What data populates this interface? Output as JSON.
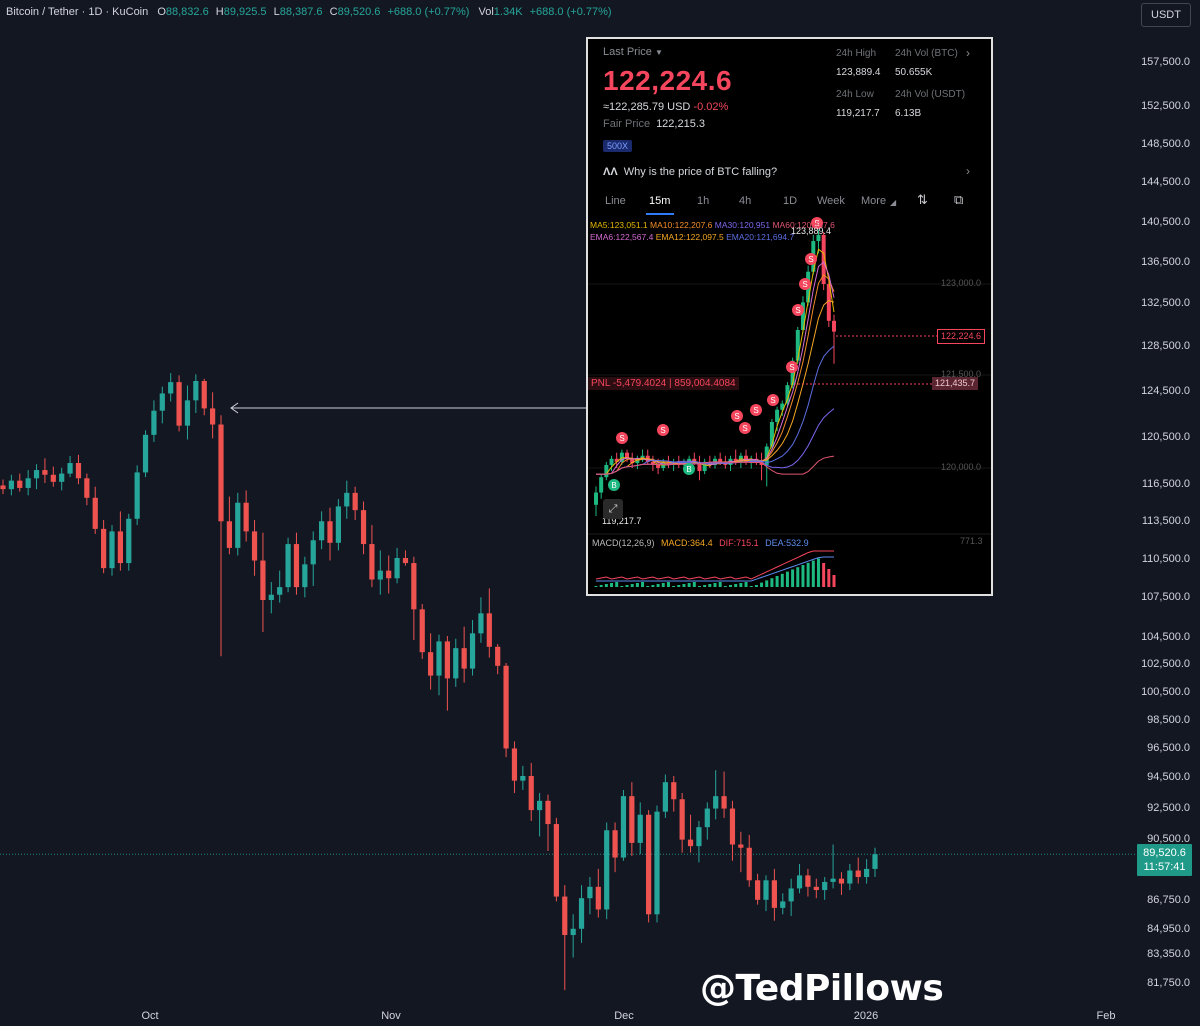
{
  "header": {
    "symbol": "Bitcoin / Tether · 1D · KuCoin",
    "o_label": "O",
    "o": "88,832.6",
    "h_label": "H",
    "h": "89,925.5",
    "l_label": "L",
    "l": "88,387.6",
    "c_label": "C",
    "c": "89,520.6",
    "change": "+688.0 (+0.77%)",
    "vol_label": "Vol",
    "vol": "1.34K",
    "vol_change": "+688.0 (+0.77%)"
  },
  "currency_button": "USDT",
  "current_price_tag": {
    "price": "89,520.6",
    "countdown": "11:57:41"
  },
  "watermark": "@TedPillows",
  "colors": {
    "background": "#131722",
    "up": "#26a69a",
    "down": "#ef5350",
    "axis_text": "#d1d4dc",
    "price_tag": "#1f9a88"
  },
  "chart_data": [
    {
      "type": "candlestick",
      "title": "Bitcoin / Tether · 1D · KuCoin",
      "x_labels": [
        "Oct",
        "Nov",
        "Dec",
        "2026",
        "Feb"
      ],
      "y_ticks": [
        "157,500.0",
        "152,500.0",
        "148,500.0",
        "144,500.0",
        "140,500.0",
        "136,500.0",
        "132,500.0",
        "128,500.0",
        "124,500.0",
        "120,500.0",
        "116,500.0",
        "113,500.0",
        "110,500.0",
        "107,500.0",
        "104,500.0",
        "102,500.0",
        "100,500.0",
        "98,500.0",
        "96,500.0",
        "94,500.0",
        "92,500.0",
        "90,500.0",
        "86,750.0",
        "84,950.0",
        "83,350.0",
        "81,750.0"
      ],
      "y_tick_values": [
        157500,
        152500,
        148500,
        144500,
        140500,
        136500,
        132500,
        128500,
        124500,
        120500,
        116500,
        113500,
        110500,
        107500,
        104500,
        102500,
        100500,
        98500,
        96500,
        94500,
        92500,
        90500,
        86750,
        84950,
        83350,
        81750
      ],
      "candles": [
        [
          116300,
          116800,
          115600,
          116000
        ],
        [
          116000,
          117200,
          115500,
          116700
        ],
        [
          116700,
          117300,
          115800,
          116100
        ],
        [
          116100,
          117600,
          115500,
          116900
        ],
        [
          116900,
          118100,
          116000,
          117600
        ],
        [
          117600,
          118600,
          116500,
          117200
        ],
        [
          117200,
          117900,
          116200,
          116600
        ],
        [
          116600,
          117800,
          115900,
          117300
        ],
        [
          117300,
          118800,
          117000,
          118200
        ],
        [
          118200,
          118900,
          116400,
          116900
        ],
        [
          116900,
          117300,
          114700,
          115300
        ],
        [
          115300,
          116200,
          112400,
          112800
        ],
        [
          112800,
          113500,
          109300,
          109700
        ],
        [
          109700,
          113100,
          109100,
          112600
        ],
        [
          112600,
          114200,
          109500,
          110100
        ],
        [
          110100,
          114000,
          109500,
          113600
        ],
        [
          113600,
          118000,
          113100,
          117400
        ],
        [
          117400,
          121000,
          117000,
          120600
        ],
        [
          120600,
          123600,
          120000,
          122700
        ],
        [
          122700,
          124800,
          121600,
          124200
        ],
        [
          124200,
          126000,
          123500,
          125200
        ],
        [
          125200,
          125800,
          120900,
          121400
        ],
        [
          121400,
          124900,
          120200,
          123600
        ],
        [
          123600,
          125900,
          122500,
          125300
        ],
        [
          125300,
          125500,
          122300,
          122900
        ],
        [
          122900,
          124300,
          120300,
          121500
        ],
        [
          121500,
          122300,
          103000,
          113400
        ],
        [
          113400,
          115400,
          110800,
          111300
        ],
        [
          111300,
          115700,
          110700,
          114900
        ],
        [
          114900,
          115900,
          111800,
          112600
        ],
        [
          112600,
          113500,
          109100,
          110300
        ],
        [
          110300,
          112500,
          104800,
          107200
        ],
        [
          107200,
          108600,
          106200,
          107600
        ],
        [
          107600,
          109500,
          107000,
          108200
        ],
        [
          108200,
          112100,
          107800,
          111600
        ],
        [
          111600,
          112500,
          107600,
          108200
        ],
        [
          108200,
          110600,
          107400,
          110000
        ],
        [
          110000,
          112600,
          108300,
          111900
        ],
        [
          111900,
          114200,
          111200,
          113400
        ],
        [
          113400,
          114500,
          110300,
          111700
        ],
        [
          111700,
          115200,
          111100,
          114600
        ],
        [
          114600,
          116700,
          113600,
          115700
        ],
        [
          115700,
          116200,
          113500,
          114300
        ],
        [
          114300,
          115000,
          110800,
          111600
        ],
        [
          111600,
          113100,
          108200,
          108800
        ],
        [
          108800,
          111100,
          107600,
          109500
        ],
        [
          109500,
          110700,
          107700,
          108900
        ],
        [
          108900,
          111300,
          108500,
          110500
        ],
        [
          110500,
          111100,
          109900,
          110100
        ],
        [
          110100,
          110600,
          104200,
          106500
        ],
        [
          106500,
          106900,
          102800,
          103300
        ],
        [
          103300,
          104700,
          100600,
          101600
        ],
        [
          101600,
          104600,
          100200,
          104100
        ],
        [
          104100,
          104500,
          99100,
          101400
        ],
        [
          101400,
          104300,
          100800,
          103600
        ],
        [
          103600,
          105200,
          101100,
          102100
        ],
        [
          102100,
          105700,
          101600,
          104700
        ],
        [
          104700,
          107400,
          104000,
          106200
        ],
        [
          106200,
          108100,
          102900,
          103700
        ],
        [
          103700,
          103900,
          101700,
          102300
        ],
        [
          102300,
          102500,
          95800,
          96400
        ],
        [
          96400,
          96900,
          93400,
          94200
        ],
        [
          94200,
          95200,
          93600,
          94500
        ],
        [
          94500,
          95400,
          91600,
          92300
        ],
        [
          92300,
          93400,
          90600,
          92900
        ],
        [
          92900,
          93300,
          89700,
          91400
        ],
        [
          91400,
          91800,
          86600,
          86900
        ],
        [
          86900,
          87600,
          81300,
          84500
        ],
        [
          84500,
          85800,
          83100,
          84900
        ],
        [
          84900,
          87600,
          84000,
          86800
        ],
        [
          86800,
          88100,
          85800,
          87500
        ],
        [
          87500,
          88600,
          85600,
          86100
        ],
        [
          86100,
          91500,
          85500,
          91000
        ],
        [
          91000,
          91500,
          88400,
          89300
        ],
        [
          89300,
          93600,
          89100,
          93200
        ],
        [
          93200,
          94100,
          89400,
          90200
        ],
        [
          90200,
          92800,
          89500,
          92000
        ],
        [
          92000,
          92300,
          85300,
          85800
        ],
        [
          85800,
          92600,
          85300,
          92200
        ],
        [
          92200,
          94600,
          91800,
          94100
        ],
        [
          94100,
          94500,
          92200,
          93000
        ],
        [
          93000,
          93400,
          89600,
          90400
        ],
        [
          90400,
          92000,
          89600,
          90000
        ],
        [
          90000,
          91600,
          89000,
          91200
        ],
        [
          91200,
          92800,
          90400,
          92400
        ],
        [
          92400,
          94900,
          91700,
          93200
        ],
        [
          93200,
          94800,
          91800,
          92400
        ],
        [
          92400,
          92900,
          89100,
          90100
        ],
        [
          90100,
          90900,
          88400,
          89900
        ],
        [
          89900,
          90700,
          87500,
          87900
        ],
        [
          87900,
          88300,
          86400,
          86700
        ],
        [
          86700,
          88200,
          86000,
          87900
        ],
        [
          87900,
          88600,
          85400,
          86200
        ],
        [
          86200,
          87100,
          85800,
          86600
        ],
        [
          86600,
          88000,
          85700,
          87400
        ],
        [
          87400,
          88900,
          87100,
          88200
        ],
        [
          88200,
          88600,
          86900,
          87500
        ],
        [
          87500,
          88000,
          86800,
          87300
        ],
        [
          87300,
          88100,
          86700,
          87800
        ],
        [
          87800,
          90100,
          87400,
          88000
        ],
        [
          88000,
          88400,
          87000,
          87700
        ],
        [
          87700,
          88900,
          87300,
          88500
        ],
        [
          88500,
          89300,
          87700,
          88100
        ],
        [
          88100,
          89200,
          87700,
          88600
        ],
        [
          88600,
          89900,
          88100,
          89500
        ]
      ],
      "arrow_annotation_price": 124500
    },
    {
      "type": "candlestick",
      "panel": "inset",
      "last_price_label": "Last Price",
      "last_price": "122,224.6",
      "approx": "≈122,285.79",
      "approx_unit": "USD",
      "approx_change": "-0.02%",
      "fair_price_label": "Fair Price",
      "fair_price": "122,215.3",
      "leverage": "500X",
      "stats": {
        "high_label": "24h High",
        "high": "123,889.4",
        "vol_btc_label": "24h Vol (BTC)",
        "vol_btc": "50.655K",
        "low_label": "24h Low",
        "low": "119,217.7",
        "vol_usdt_label": "24h Vol (USDT)",
        "vol_usdt": "6.13B"
      },
      "question": "Why is the price of BTC falling?",
      "tabs": [
        "Line",
        "15m",
        "1h",
        "4h",
        "1D",
        "Week",
        "More"
      ],
      "active_tab": "15m",
      "ma_row1": [
        "MA5:123,051.1",
        "MA10:122,207.6",
        "MA30:120,951",
        "MA60:120,457.6"
      ],
      "ma_row2": [
        "EMA6:122,567.4",
        "EMA12:122,097.5",
        "EMA20:121,694.7"
      ],
      "ma_colors": [
        "#e6b800",
        "#f28c28",
        "#7b68ee",
        "#e05570",
        "#d46bd4",
        "#f5a623",
        "#5b6ee1"
      ],
      "price_labels": [
        "123,000.0",
        "121,500.0",
        "120,000.0"
      ],
      "price_label_values": [
        123000,
        121500,
        120000
      ],
      "high_marker": "123,889.4",
      "low_marker": "119,217.7",
      "last_price_tag": "122,224.6",
      "position_price_tag": "121,435.7",
      "pnl_text": "PNL -5,479.4024",
      "pnl_amount": "859,004.4084",
      "macd_label": "MACD(12,26,9)",
      "macd": "MACD:364.4",
      "dif": "DIF:715.1",
      "dea": "DEA:532.9",
      "macd_axis_label": "771.3",
      "sell_marker": "S",
      "buy_marker": "B"
    }
  ]
}
